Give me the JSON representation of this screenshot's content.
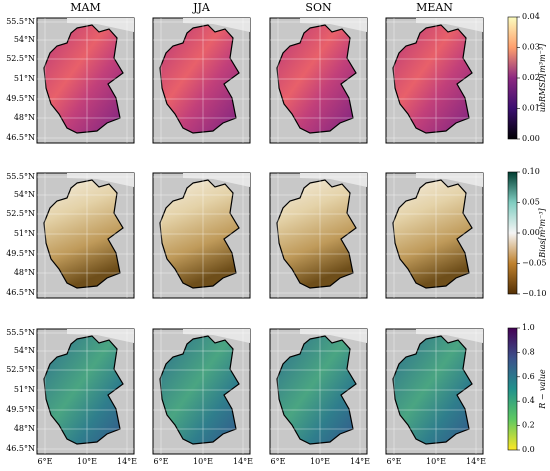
{
  "columns": [
    "MAM",
    "JJA",
    "SON",
    "MEAN"
  ],
  "lat_labels": [
    "55.5°N",
    "54°N",
    "52.5°N",
    "51°N",
    "49.5°N",
    "48°N",
    "46.5°N"
  ],
  "lon_labels": [
    "6°E",
    "10°E",
    "14°E"
  ],
  "rows": [
    {
      "colorbar": {
        "label": "ubRMSD[m³m⁻³]",
        "lim": [
          0,
          0.04
        ],
        "ticks": [
          {
            "value": 0,
            "label": "0.00"
          },
          {
            "value": 0.01,
            "label": "0.01"
          },
          {
            "value": 0.02,
            "label": "0.02"
          },
          {
            "value": 0.03,
            "label": "0.03"
          },
          {
            "value": 0.04,
            "label": "0.04"
          }
        ]
      }
    },
    {
      "colorbar": {
        "label": "Bias[m³m⁻³]",
        "lim": [
          -0.1,
          0.1
        ],
        "ticks": [
          {
            "value": -0.1,
            "label": "−0.10"
          },
          {
            "value": -0.05,
            "label": "−0.05"
          },
          {
            "value": 0,
            "label": "0.00"
          },
          {
            "value": 0.05,
            "label": "0.05"
          },
          {
            "value": 0.1,
            "label": "0.10"
          }
        ]
      }
    },
    {
      "colorbar": {
        "label": "R − value",
        "lim": [
          0,
          1
        ],
        "ticks": [
          {
            "value": 0,
            "label": "0.0"
          },
          {
            "value": 0.2,
            "label": "0.2"
          },
          {
            "value": 0.4,
            "label": "0.4"
          },
          {
            "value": 0.6,
            "label": "0.6"
          },
          {
            "value": 0.8,
            "label": "0.8"
          },
          {
            "value": 1,
            "label": "1.0"
          }
        ]
      }
    }
  ]
}
